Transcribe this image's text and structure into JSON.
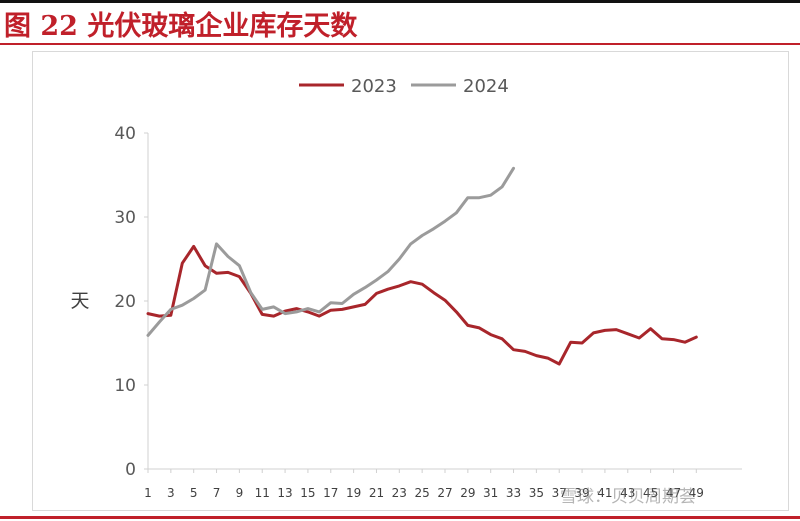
{
  "header": {
    "figure_title": "图 22    光伏玻璃企业库存天数"
  },
  "watermark": "雪球：贝贝周期荟",
  "colors": {
    "accent": "#c0202a",
    "series_2023": "#a8262b",
    "series_2024": "#9b9b9b"
  },
  "chart_data": {
    "type": "line",
    "ylabel": "天",
    "ylim": [
      0,
      40
    ],
    "yticks": [
      0,
      10,
      20,
      30,
      40
    ],
    "xlim": [
      1,
      53
    ],
    "xticks": [
      "1",
      "3",
      "5",
      "7",
      "9",
      "11",
      "13",
      "15",
      "17",
      "19",
      "21",
      "23",
      "25",
      "27",
      "29",
      "31",
      "33",
      "35",
      "37",
      "39",
      "41",
      "43",
      "45",
      "47",
      "49"
    ],
    "legend_position": "top-center",
    "grid": false,
    "series": [
      {
        "name": "2023",
        "x": [
          1,
          2,
          3,
          4,
          5,
          6,
          7,
          8,
          9,
          10,
          11,
          12,
          13,
          14,
          15,
          16,
          17,
          18,
          19,
          20,
          21,
          22,
          23,
          24,
          25,
          26,
          27,
          28,
          29,
          30,
          31,
          32,
          33,
          34,
          35,
          36,
          37,
          38,
          39,
          40,
          41,
          42,
          43,
          44,
          45,
          46,
          47,
          48,
          49
        ],
        "y": [
          18.5,
          18.2,
          18.3,
          24.5,
          26.5,
          24.2,
          23.3,
          23.4,
          22.9,
          20.9,
          18.4,
          18.2,
          18.8,
          19.1,
          18.7,
          18.2,
          18.9,
          19.0,
          19.3,
          19.6,
          20.9,
          21.4,
          21.8,
          22.3,
          22.0,
          21.0,
          20.1,
          18.7,
          17.1,
          16.8,
          16.0,
          15.5,
          14.2,
          14.0,
          13.5,
          13.2,
          12.5,
          15.1,
          15.0,
          16.2,
          16.5,
          16.6,
          16.1,
          15.6,
          16.7,
          15.5,
          15.4,
          15.1,
          15.7
        ]
      },
      {
        "name": "2024",
        "x": [
          1,
          2,
          3,
          4,
          5,
          6,
          7,
          8,
          9,
          10,
          11,
          12,
          13,
          14,
          15,
          16,
          17,
          18,
          19,
          20,
          21,
          22,
          23,
          24,
          25,
          26,
          27,
          28,
          29,
          30,
          31,
          32,
          33
        ],
        "y": [
          15.9,
          17.5,
          19.0,
          19.5,
          20.3,
          21.3,
          26.8,
          25.3,
          24.2,
          21.0,
          19.0,
          19.3,
          18.5,
          18.7,
          19.1,
          18.7,
          19.8,
          19.7,
          20.8,
          21.6,
          22.5,
          23.5,
          25.0,
          26.8,
          27.8,
          28.6,
          29.5,
          30.5,
          32.3,
          32.3,
          32.6,
          33.6,
          35.8
        ]
      }
    ]
  }
}
